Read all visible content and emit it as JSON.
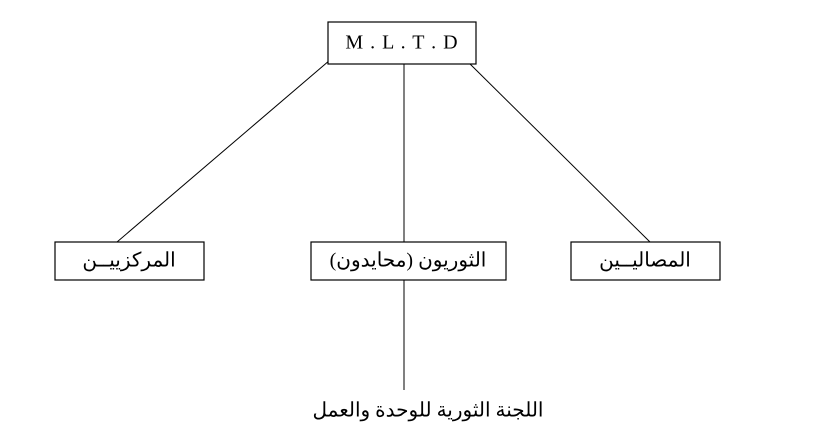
{
  "nodes": [
    {
      "label": "M . L . T . D"
    },
    {
      "label": "المركزييــن"
    },
    {
      "label": "الثوريون (محايدون)"
    },
    {
      "label": "المصاليــين"
    }
  ],
  "caption": "اللجنة الثورية للوحدة والعمل"
}
